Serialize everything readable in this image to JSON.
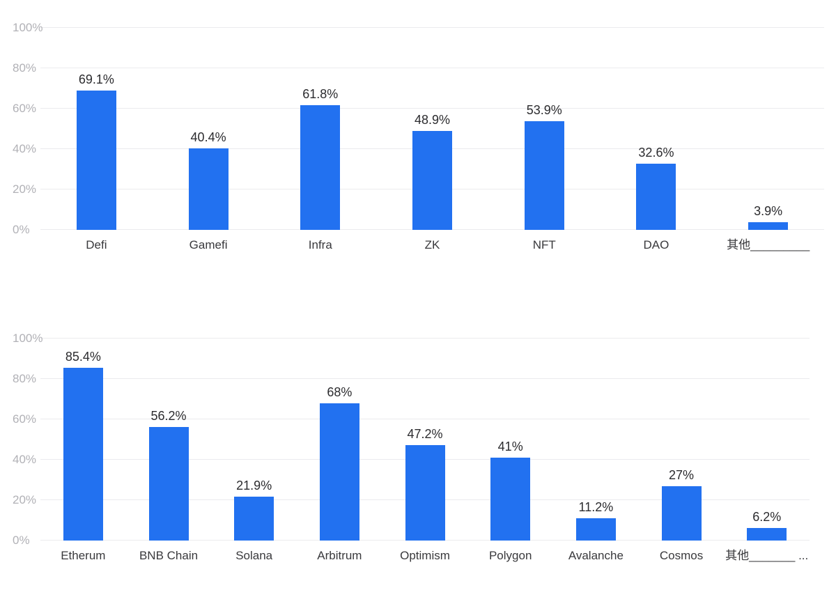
{
  "page": {
    "background": "#ffffff"
  },
  "colors": {
    "bar": "#2271F0",
    "gridline": "#ebebee",
    "axis_tick_label": "#b1b1b6",
    "value_label": "#2b2b2e",
    "category_label": "#39393c"
  },
  "chart_data": [
    {
      "type": "bar",
      "title": "",
      "xlabel": "",
      "ylabel": "",
      "categories": [
        "Defi",
        "Gamefi",
        "Infra",
        "ZK",
        "NFT",
        "DAO",
        "其他_________"
      ],
      "values": [
        69.1,
        40.4,
        61.8,
        48.9,
        53.9,
        32.6,
        3.9
      ],
      "value_labels": [
        "69.1%",
        "40.4%",
        "61.8%",
        "48.9%",
        "53.9%",
        "32.6%",
        "3.9%"
      ],
      "yticks": [
        {
          "label": "100%",
          "value": 100
        },
        {
          "label": "80%",
          "value": 80
        },
        {
          "label": "60%",
          "value": 60
        },
        {
          "label": "40%",
          "value": 40
        },
        {
          "label": "20%",
          "value": 20
        },
        {
          "label": "0%",
          "value": 0
        }
      ],
      "ylim": [
        0,
        100
      ],
      "grid": true,
      "legend": null
    },
    {
      "type": "bar",
      "title": "",
      "xlabel": "",
      "ylabel": "",
      "categories": [
        "Etherum",
        "BNB Chain",
        "Solana",
        "Arbitrum",
        "Optimism",
        "Polygon",
        "Avalanche",
        "Cosmos",
        "其他_______ ..."
      ],
      "values": [
        85.4,
        56.2,
        21.9,
        68,
        47.2,
        41,
        11.2,
        27,
        6.2
      ],
      "value_labels": [
        "85.4%",
        "56.2%",
        "21.9%",
        "68%",
        "47.2%",
        "41%",
        "11.2%",
        "27%",
        "6.2%"
      ],
      "yticks": [
        {
          "label": "100%",
          "value": 100
        },
        {
          "label": "80%",
          "value": 80
        },
        {
          "label": "60%",
          "value": 60
        },
        {
          "label": "40%",
          "value": 40
        },
        {
          "label": "20%",
          "value": 20
        },
        {
          "label": "0%",
          "value": 0
        }
      ],
      "ylim": [
        0,
        100
      ],
      "grid": true,
      "legend": null
    }
  ]
}
